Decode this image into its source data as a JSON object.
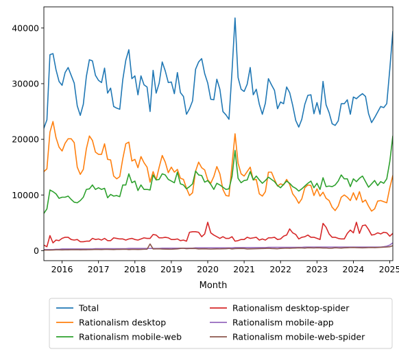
{
  "chart_data": {
    "type": "line",
    "title": "",
    "xlabel": "Month",
    "ylabel": "",
    "x_start": "2015-07",
    "x_end": "2025-02",
    "xlim": [
      "2015-07",
      "2025-02"
    ],
    "ylim": [
      -1800,
      43800
    ],
    "x_ticks": [
      {
        "date": "2016-01",
        "label": "2016"
      },
      {
        "date": "2017-01",
        "label": "2017"
      },
      {
        "date": "2018-01",
        "label": "2018"
      },
      {
        "date": "2019-01",
        "label": "2019"
      },
      {
        "date": "2020-01",
        "label": "2020"
      },
      {
        "date": "2021-01",
        "label": "2021"
      },
      {
        "date": "2022-01",
        "label": "2022"
      },
      {
        "date": "2023-01",
        "label": "2023"
      },
      {
        "date": "2024-01",
        "label": "2024"
      },
      {
        "date": "2025-01",
        "label": "2025"
      }
    ],
    "y_ticks": [
      {
        "value": 0,
        "label": "0"
      },
      {
        "value": 10000,
        "label": "10000"
      },
      {
        "value": 20000,
        "label": "20000"
      },
      {
        "value": 30000,
        "label": "30000"
      },
      {
        "value": 40000,
        "label": "40000"
      }
    ],
    "grid": false,
    "legend_position": "bottom-center",
    "series": [
      {
        "name": "Total",
        "color": "#1f77b4",
        "values": [
          22000,
          23500,
          35200,
          35400,
          32500,
          30400,
          29700,
          32000,
          32900,
          31500,
          30100,
          26000,
          24300,
          26300,
          31300,
          34300,
          34100,
          31500,
          30600,
          30200,
          32800,
          28300,
          29200,
          25900,
          25600,
          25400,
          30700,
          34200,
          36100,
          30900,
          31400,
          28000,
          31400,
          29800,
          29400,
          25000,
          32400,
          28300,
          30100,
          33900,
          32300,
          30200,
          30300,
          28200,
          32000,
          28400,
          27700,
          24500,
          25500,
          26900,
          32600,
          33900,
          34500,
          31800,
          30100,
          27200,
          27100,
          30800,
          29000,
          25000,
          24400,
          23600,
          32200,
          41800,
          31100,
          29000,
          28600,
          29900,
          32900,
          28000,
          29000,
          26300,
          24500,
          26500,
          30900,
          29800,
          28800,
          25500,
          26700,
          26400,
          29400,
          28400,
          26100,
          23400,
          22200,
          23600,
          26300,
          27900,
          28000,
          24600,
          26600,
          24500,
          30400,
          26200,
          24800,
          22800,
          22500,
          23300,
          26400,
          26400,
          27100,
          24500,
          27600,
          27300,
          27800,
          28200,
          27700,
          24600,
          23000,
          23900,
          24900,
          25900,
          25700,
          26400,
          32600,
          39400
        ]
      },
      {
        "name": "Rationalism desktop",
        "color": "#ff7f0e",
        "values": [
          14200,
          14700,
          21300,
          23200,
          20300,
          18600,
          17900,
          19300,
          20100,
          20100,
          19400,
          15000,
          13700,
          14600,
          18300,
          20600,
          19800,
          17700,
          17300,
          17300,
          19200,
          16400,
          16300,
          13400,
          12900,
          13300,
          16500,
          19200,
          19500,
          16100,
          16400,
          14900,
          16900,
          15800,
          15000,
          12300,
          14200,
          12700,
          15000,
          17100,
          15900,
          14000,
          15000,
          14100,
          14600,
          13000,
          12800,
          11200,
          9900,
          10400,
          14300,
          15900,
          14900,
          14500,
          12700,
          12100,
          13300,
          15100,
          13800,
          11000,
          9900,
          9800,
          15400,
          21000,
          15700,
          13800,
          13400,
          14200,
          15000,
          12700,
          12800,
          10200,
          9800,
          10600,
          14100,
          14100,
          12800,
          11600,
          12000,
          11800,
          12800,
          11900,
          10200,
          9500,
          8500,
          9300,
          11300,
          11800,
          11700,
          9900,
          11100,
          9800,
          10500,
          9400,
          9000,
          7800,
          7200,
          8000,
          9600,
          10000,
          9600,
          9000,
          10400,
          9100,
          10600,
          8700,
          9100,
          8000,
          7100,
          7500,
          8900,
          9000,
          8800,
          8600,
          11300,
          13500
        ]
      },
      {
        "name": "Rationalism mobile-web",
        "color": "#2ca02c",
        "values": [
          6700,
          7500,
          10900,
          10600,
          10200,
          9400,
          9600,
          9600,
          9800,
          9200,
          8700,
          8600,
          9000,
          9600,
          11000,
          11100,
          11800,
          11000,
          11300,
          11000,
          11200,
          9500,
          10100,
          9800,
          9900,
          9700,
          11800,
          11800,
          13800,
          12200,
          12500,
          10800,
          11800,
          11000,
          11000,
          10900,
          13600,
          12700,
          12800,
          13800,
          13600,
          12800,
          12500,
          12200,
          14100,
          12000,
          11800,
          11100,
          11500,
          12000,
          14300,
          13600,
          13500,
          12300,
          12600,
          11900,
          11000,
          12100,
          11800,
          11400,
          11000,
          11100,
          13300,
          18000,
          13000,
          12200,
          12600,
          12700,
          14200,
          12700,
          13400,
          12700,
          12100,
          12600,
          13200,
          12800,
          12400,
          11700,
          11300,
          11900,
          12500,
          12100,
          11500,
          11200,
          10700,
          11100,
          11600,
          12100,
          12500,
          11300,
          12100,
          11000,
          13100,
          11500,
          11600,
          11500,
          11800,
          12500,
          13600,
          12900,
          12900,
          11500,
          12900,
          12400,
          13000,
          13400,
          12400,
          11400,
          12000,
          12600,
          11700,
          12400,
          12100,
          12900,
          16000,
          20600
        ]
      },
      {
        "name": "Rationalism desktop-spider",
        "color": "#d62728",
        "values": [
          1000,
          700,
          2700,
          1400,
          1900,
          1800,
          2200,
          2400,
          2400,
          2000,
          1900,
          2000,
          1600,
          1600,
          1700,
          1700,
          2200,
          2000,
          2100,
          1900,
          2200,
          1800,
          1800,
          2300,
          2200,
          2100,
          2100,
          1900,
          2100,
          2200,
          2000,
          1900,
          2100,
          2300,
          2200,
          2200,
          2900,
          2800,
          2300,
          2300,
          2400,
          2300,
          2000,
          2000,
          2100,
          1800,
          1900,
          1700,
          3300,
          3400,
          3400,
          3300,
          2500,
          3000,
          5100,
          3200,
          2800,
          2500,
          2200,
          2500,
          2200,
          2200,
          2500,
          1700,
          1800,
          2000,
          2000,
          2400,
          2200,
          2300,
          2400,
          1900,
          2100,
          1900,
          2300,
          2300,
          2400,
          2000,
          2100,
          2600,
          2800,
          3900,
          3200,
          2900,
          2100,
          2400,
          2500,
          2800,
          2400,
          2400,
          2200,
          2000,
          4900,
          4200,
          3000,
          2400,
          2400,
          2200,
          2100,
          2100,
          3100,
          3700,
          3200,
          5100,
          3100,
          4500,
          4600,
          3800,
          2800,
          2900,
          3200,
          3000,
          3300,
          3200,
          2600,
          3100
        ]
      },
      {
        "name": "Rationalism mobile-app",
        "color": "#9467bd",
        "values": [
          200,
          200,
          200,
          200,
          250,
          250,
          300,
          300,
          300,
          300,
          300,
          300,
          300,
          300,
          300,
          300,
          300,
          350,
          350,
          350,
          350,
          350,
          350,
          350,
          350,
          350,
          350,
          350,
          400,
          400,
          400,
          400,
          400,
          400,
          400,
          400,
          400,
          400,
          400,
          450,
          450,
          450,
          450,
          450,
          450,
          450,
          450,
          450,
          450,
          450,
          500,
          500,
          500,
          500,
          500,
          500,
          500,
          500,
          500,
          500,
          500,
          500,
          500,
          550,
          550,
          550,
          550,
          550,
          550,
          550,
          550,
          550,
          550,
          550,
          600,
          600,
          600,
          600,
          600,
          600,
          600,
          600,
          600,
          600,
          600,
          600,
          650,
          650,
          650,
          650,
          650,
          650,
          650,
          650,
          650,
          650,
          650,
          650,
          650,
          650,
          650,
          650,
          650,
          650,
          650,
          650,
          650,
          650,
          650,
          650,
          650,
          650,
          700,
          800,
          1000,
          1400
        ]
      },
      {
        "name": "Rationalism mobile-web-spider",
        "color": "#8c564b",
        "values": [
          100,
          100,
          100,
          120,
          150,
          150,
          130,
          140,
          150,
          160,
          170,
          180,
          150,
          160,
          170,
          180,
          200,
          220,
          210,
          200,
          230,
          220,
          210,
          200,
          220,
          230,
          240,
          250,
          200,
          230,
          220,
          210,
          220,
          250,
          260,
          1200,
          300,
          320,
          330,
          280,
          270,
          260,
          250,
          290,
          320,
          400,
          420,
          350,
          380,
          400,
          380,
          300,
          320,
          340,
          300,
          280,
          300,
          320,
          310,
          330,
          350,
          400,
          300,
          360,
          380,
          400,
          380,
          300,
          320,
          340,
          350,
          360,
          380,
          390,
          420,
          380,
          360,
          340,
          400,
          420,
          450,
          430,
          450,
          470,
          500,
          480,
          460,
          520,
          500,
          480,
          520,
          500,
          470,
          480,
          420,
          440,
          520,
          480,
          460,
          500,
          520,
          540,
          560,
          530,
          520,
          500,
          520,
          540,
          560,
          530,
          560,
          590,
          620,
          650,
          700,
          900
        ]
      }
    ]
  }
}
